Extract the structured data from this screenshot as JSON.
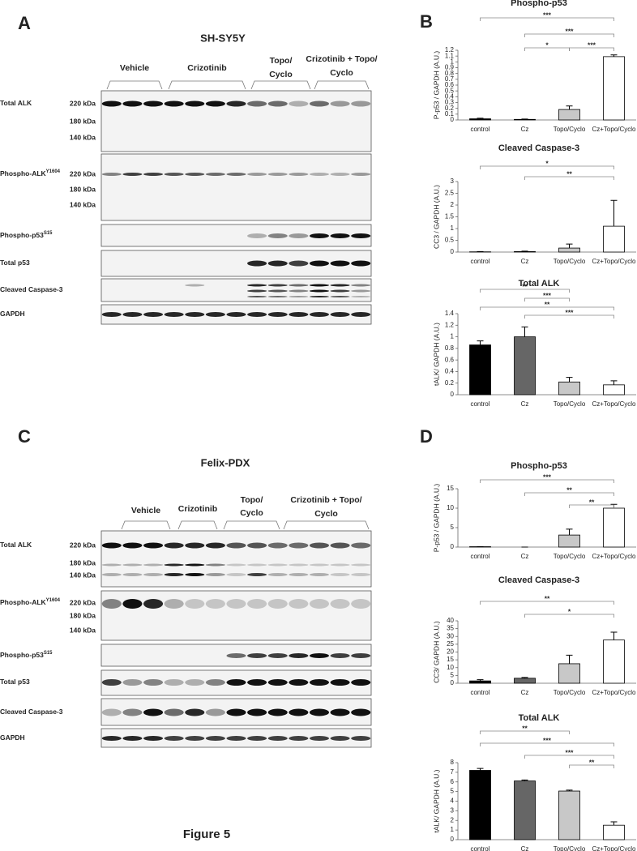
{
  "blot_panels": [
    {
      "letter": "A",
      "title": "SH-SY5Y",
      "groups": [
        {
          "lines": [
            "Vehicle"
          ]
        },
        {
          "lines": [
            "Crizotinib"
          ]
        },
        {
          "lines": [
            "Topo/",
            "Cyclo"
          ]
        },
        {
          "lines": [
            "Crizotinib + Topo/",
            "Cyclo"
          ]
        }
      ],
      "rows": [
        {
          "name": "Total ALK",
          "markers": [
            "220  kDa",
            "180 kDa",
            "140 kDa"
          ]
        },
        {
          "name": "Phospho-ALK",
          "sup": "Y1604",
          "markers": [
            "220  kDa",
            "180 kDa",
            "140 kDa"
          ]
        },
        {
          "name": "Phospho-p53",
          "sup": "S15"
        },
        {
          "name": "Total p53"
        },
        {
          "name": "Cleaved Caspase-3"
        },
        {
          "name": "GAPDH"
        }
      ]
    },
    {
      "letter": "C",
      "title": "Felix-PDX",
      "groups": [
        {
          "lines": [
            "Vehicle"
          ]
        },
        {
          "lines": [
            "Crizotinib"
          ]
        },
        {
          "lines": [
            "Topo/",
            "Cyclo"
          ]
        },
        {
          "lines": [
            "Crizotinib + Topo/",
            "Cyclo"
          ]
        }
      ],
      "rows": [
        {
          "name": "Total ALK",
          "markers": [
            "220  kDa",
            "180 kDa",
            "140 kDa"
          ]
        },
        {
          "name": "Phospho-ALK",
          "sup": "Y1604",
          "markers": [
            "220  kDa",
            "180 kDa",
            "140 kDa"
          ]
        },
        {
          "name": "Phospho-p53",
          "sup": "S15"
        },
        {
          "name": "Total p53"
        },
        {
          "name": "Cleaved Caspase-3"
        },
        {
          "name": "GAPDH"
        }
      ]
    }
  ],
  "chart_panels": [
    "B",
    "D"
  ],
  "chart_data": [
    {
      "type": "bar",
      "title": "Phospho-p53",
      "ylabel": "P-p53 / GAPDH (A.U.)",
      "categories": [
        "control",
        "Cz",
        "Topo/Cyclo",
        "Cz+Topo/Cyclo"
      ],
      "values": [
        0.02,
        0.01,
        0.18,
        1.09
      ],
      "errors": [
        0.01,
        0.005,
        0.06,
        0.03
      ],
      "colors": [
        "#000000",
        "#666666",
        "#c8c8c8",
        "#ffffff"
      ],
      "ylim": [
        0,
        1.2
      ],
      "yticks": [
        0,
        0.1,
        0.2,
        0.3,
        0.4,
        0.5,
        0.6,
        0.7,
        0.8,
        0.9,
        1,
        1.1,
        1.2
      ],
      "comparisons": [
        {
          "from": 0,
          "to": 3,
          "label": "***"
        },
        {
          "from": 1,
          "to": 3,
          "label": "***"
        },
        {
          "from": 1,
          "to": 2,
          "label": "*"
        },
        {
          "from": 2,
          "to": 3,
          "label": "***"
        }
      ]
    },
    {
      "type": "bar",
      "title": "Cleaved Caspase-3",
      "ylabel": "CC3 / GAPDH (A.U.)",
      "categories": [
        "control",
        "Cz",
        "Topo/Cyclo",
        "Cz+Topo/Cyclo"
      ],
      "values": [
        0.01,
        0.02,
        0.17,
        1.1
      ],
      "errors": [
        0.01,
        0.02,
        0.17,
        1.1
      ],
      "colors": [
        "#000000",
        "#666666",
        "#c8c8c8",
        "#ffffff"
      ],
      "ylim": [
        0,
        3
      ],
      "yticks": [
        0,
        0.5,
        1,
        1.5,
        2,
        2.5,
        3
      ],
      "comparisons": [
        {
          "from": 0,
          "to": 3,
          "label": "*"
        },
        {
          "from": 1,
          "to": 3,
          "label": "**"
        }
      ]
    },
    {
      "type": "bar",
      "title": "Total ALK",
      "ylabel": "tALK/ GAPDH (A.U.)",
      "categories": [
        "control",
        "Cz",
        "Topo/Cyclo",
        "Cz+Topo/Cyclo"
      ],
      "values": [
        0.86,
        1.0,
        0.22,
        0.17
      ],
      "errors": [
        0.07,
        0.17,
        0.08,
        0.07
      ],
      "colors": [
        "#000000",
        "#666666",
        "#c8c8c8",
        "#ffffff"
      ],
      "ylim": [
        0,
        1.4
      ],
      "yticks": [
        0,
        0.2,
        0.4,
        0.6,
        0.8,
        1,
        1.2,
        1.4
      ],
      "comparisons": [
        {
          "from": 0,
          "to": 2,
          "label": "**"
        },
        {
          "from": 0,
          "to": 3,
          "label": "**"
        },
        {
          "from": 1,
          "to": 2,
          "label": "***"
        },
        {
          "from": 1,
          "to": 3,
          "label": "***"
        }
      ]
    },
    {
      "type": "bar",
      "title": "Phospho-p53",
      "ylabel": "P-p53 / GAPDH (A.U.)",
      "categories": [
        "control",
        "Cz",
        "Topo/Cyclo",
        "Cz+Topo/Cyclo"
      ],
      "values": [
        0.1,
        0,
        3.1,
        10
      ],
      "errors": [
        0,
        0,
        1.5,
        1
      ],
      "colors": [
        "#000000",
        "#666666",
        "#c8c8c8",
        "#ffffff"
      ],
      "ylim": [
        0,
        15
      ],
      "yticks": [
        0,
        5,
        10,
        15
      ],
      "comparisons": [
        {
          "from": 0,
          "to": 3,
          "label": "***"
        },
        {
          "from": 1,
          "to": 3,
          "label": "**"
        },
        {
          "from": 2,
          "to": 3,
          "label": "**"
        }
      ]
    },
    {
      "type": "bar",
      "title": "Cleaved Caspase-3",
      "ylabel": "CC3/ GAPDH (A.U.)",
      "categories": [
        "control",
        "Cz",
        "Topo/Cyclo",
        "Cz+Topo/Cyclo"
      ],
      "values": [
        1.5,
        3.2,
        12.5,
        27.7
      ],
      "errors": [
        0.8,
        0.5,
        5.5,
        5
      ],
      "colors": [
        "#000000",
        "#666666",
        "#c8c8c8",
        "#ffffff"
      ],
      "ylim": [
        0,
        40
      ],
      "yticks": [
        0,
        5,
        10,
        15,
        20,
        25,
        30,
        35,
        40
      ],
      "comparisons": [
        {
          "from": 0,
          "to": 3,
          "label": "**"
        },
        {
          "from": 1,
          "to": 3,
          "label": "*"
        }
      ]
    },
    {
      "type": "bar",
      "title": "Total ALK",
      "ylabel": "tALK/ GAPDH (A.U.)",
      "categories": [
        "control",
        "Cz",
        "Topo/Cyclo",
        "Cz+Topo/Cyclo"
      ],
      "values": [
        7.2,
        6.1,
        5.05,
        1.5
      ],
      "errors": [
        0.2,
        0.1,
        0.1,
        0.35
      ],
      "colors": [
        "#000000",
        "#666666",
        "#c8c8c8",
        "#ffffff"
      ],
      "ylim": [
        0,
        8
      ],
      "yticks": [
        0,
        1,
        2,
        3,
        4,
        5,
        6,
        7,
        8
      ],
      "comparisons": [
        {
          "from": 0,
          "to": 2,
          "label": "**"
        },
        {
          "from": 0,
          "to": 3,
          "label": "***"
        },
        {
          "from": 2,
          "to": 3,
          "label": "**"
        },
        {
          "from": 1,
          "to": 3,
          "label": "***"
        }
      ]
    }
  ],
  "figure_label": "Figure 5"
}
